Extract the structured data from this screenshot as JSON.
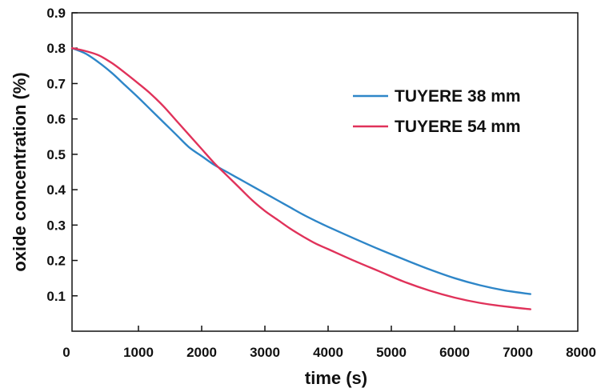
{
  "chart_data": {
    "type": "line",
    "title": "",
    "xlabel": "time (s)",
    "ylabel": "oxide concentration (%)",
    "xlim": [
      0,
      7200
    ],
    "ylim": [
      0,
      0.9
    ],
    "x_ticks": [
      0,
      1000,
      2000,
      3000,
      4000,
      5000,
      6000,
      7000,
      8000
    ],
    "y_ticks": [
      0.1,
      0.2,
      0.3,
      0.4,
      0.5,
      0.6,
      0.7,
      0.8,
      0.9
    ],
    "x_tick_labels": [
      "0",
      "1000",
      "2000",
      "3000",
      "4000",
      "5000",
      "6000",
      "7000",
      "8000"
    ],
    "y_tick_labels": [
      "0.1",
      "0.2",
      "0.3",
      "0.4",
      "0.5",
      "0.6",
      "0.7",
      "0.8",
      "0.9"
    ],
    "grid": false,
    "legend_position": "top-right",
    "series": [
      {
        "name": "TUYERE 38 mm",
        "color": "#2e86c8",
        "x": [
          0,
          200,
          400,
          600,
          800,
          1000,
          1200,
          1400,
          1600,
          1800,
          2000,
          2200,
          2400,
          2600,
          2800,
          3000,
          3200,
          3400,
          3600,
          3800,
          4000,
          4400,
          4800,
          5200,
          5600,
          6000,
          6400,
          6800,
          7200
        ],
        "y": [
          0.8,
          0.785,
          0.76,
          0.73,
          0.695,
          0.66,
          0.625,
          0.59,
          0.555,
          0.52,
          0.495,
          0.47,
          0.45,
          0.43,
          0.41,
          0.39,
          0.37,
          0.35,
          0.33,
          0.312,
          0.295,
          0.263,
          0.232,
          0.203,
          0.175,
          0.15,
          0.13,
          0.115,
          0.105
        ]
      },
      {
        "name": "TUYERE 54 mm",
        "color": "#e0325a",
        "x": [
          0,
          200,
          400,
          600,
          800,
          1000,
          1200,
          1400,
          1600,
          1800,
          2000,
          2200,
          2400,
          2600,
          2800,
          3000,
          3200,
          3400,
          3600,
          3800,
          4000,
          4400,
          4800,
          5200,
          5600,
          6000,
          6400,
          6800,
          7200
        ],
        "y": [
          0.8,
          0.792,
          0.78,
          0.758,
          0.73,
          0.7,
          0.67,
          0.635,
          0.595,
          0.555,
          0.515,
          0.475,
          0.44,
          0.405,
          0.37,
          0.34,
          0.315,
          0.29,
          0.268,
          0.248,
          0.232,
          0.2,
          0.17,
          0.14,
          0.115,
          0.095,
          0.08,
          0.07,
          0.062
        ]
      }
    ]
  }
}
